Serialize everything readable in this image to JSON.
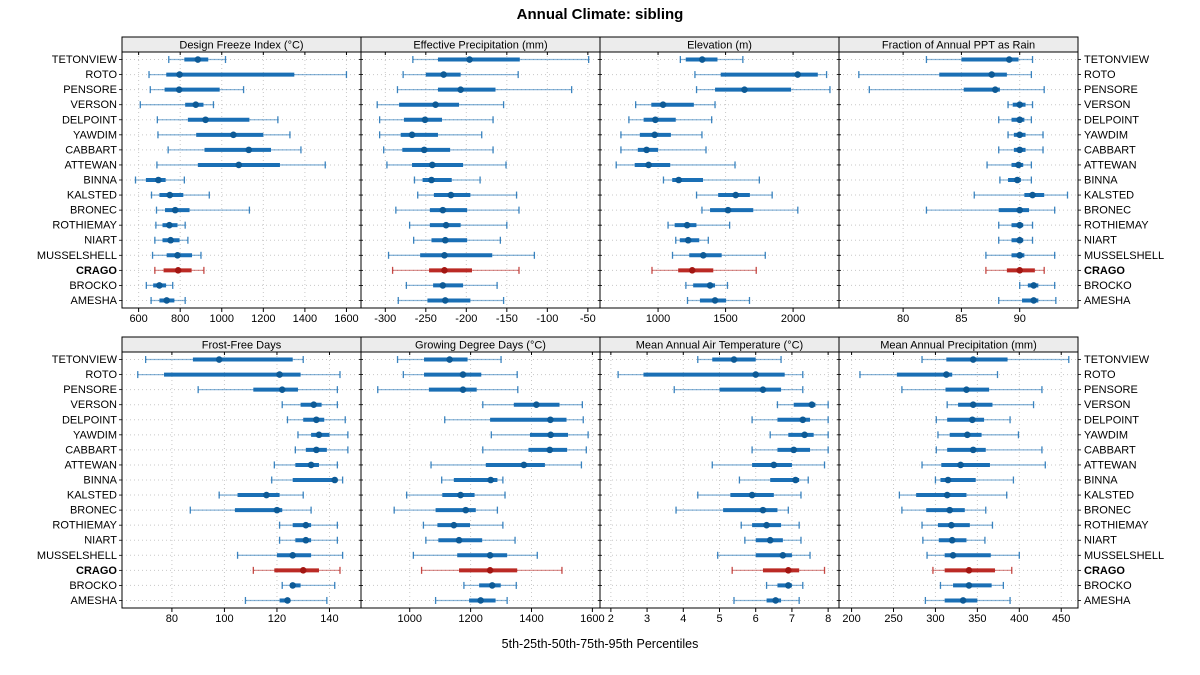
{
  "title": "Annual Climate: sibling",
  "footer": "5th-25th-50th-75th-95th Percentiles",
  "highlight_station": "CRAGO",
  "stations": [
    "TETONVIEW",
    "ROTO",
    "PENSORE",
    "VERSON",
    "DELPOINT",
    "YAWDIM",
    "CABBART",
    "ATTEWAN",
    "BINNA",
    "KALSTED",
    "BRONEC",
    "ROTHIEMAY",
    "NIART",
    "MUSSELSHELL",
    "CRAGO",
    "BROCKO",
    "AMESHA"
  ],
  "colors": {
    "series_line": "#1a6fb5",
    "series_dot": "#0d5a96",
    "highlight_line": "#bb2a25",
    "highlight_dot": "#a31612",
    "header_bg": "#ececec",
    "gridline": "#c8c8c8",
    "border": "#000000"
  },
  "chart_data": {
    "type": "dotplot-percentiles",
    "percentile_labels": [
      "5th",
      "25th",
      "50th",
      "75th",
      "95th"
    ],
    "legend_position": "none",
    "grid": "dotted",
    "panels": [
      {
        "title": "Design Freeze Index (°C)",
        "xlim": [
          520,
          1670
        ],
        "ticks": [
          600,
          800,
          1000,
          1200,
          1400,
          1600
        ],
        "values": [
          [
            745,
            820,
            885,
            935,
            1018
          ],
          [
            650,
            733,
            797,
            1349,
            1600
          ],
          [
            656,
            725,
            795,
            990,
            1105
          ],
          [
            608,
            824,
            875,
            912,
            960
          ],
          [
            690,
            837,
            922,
            1133,
            1270
          ],
          [
            693,
            877,
            1056,
            1200,
            1328
          ],
          [
            742,
            917,
            1130,
            1237,
            1381
          ],
          [
            688,
            885,
            1082,
            1280,
            1498
          ],
          [
            585,
            635,
            695,
            730,
            820
          ],
          [
            662,
            700,
            750,
            815,
            940
          ],
          [
            686,
            727,
            776,
            845,
            1133
          ],
          [
            683,
            715,
            748,
            787,
            824
          ],
          [
            678,
            715,
            754,
            797,
            837
          ],
          [
            667,
            735,
            787,
            857,
            900
          ],
          [
            678,
            720,
            790,
            855,
            914
          ],
          [
            637,
            670,
            700,
            732,
            764
          ],
          [
            660,
            700,
            735,
            772,
            824
          ]
        ]
      },
      {
        "title": "Effective Precipitation (mm)",
        "xlim": [
          -330,
          -35
        ],
        "ticks": [
          -300,
          -250,
          -200,
          -150,
          -100,
          -50
        ],
        "values": [
          [
            -266,
            -235,
            -196,
            -134,
            -49
          ],
          [
            -278,
            -250,
            -228,
            -207,
            -136
          ],
          [
            -285,
            -235,
            -207,
            -164,
            -70
          ],
          [
            -310,
            -283,
            -238,
            -209,
            -154
          ],
          [
            -307,
            -277,
            -251,
            -230,
            -167
          ],
          [
            -307,
            -281,
            -267,
            -235,
            -181
          ],
          [
            -302,
            -279,
            -252,
            -220,
            -167
          ],
          [
            -298,
            -267,
            -242,
            -204,
            -151
          ],
          [
            -264,
            -254,
            -243,
            -218,
            -183
          ],
          [
            -260,
            -240,
            -219,
            -195,
            -138
          ],
          [
            -287,
            -245,
            -229,
            -199,
            -135
          ],
          [
            -270,
            -245,
            -225,
            -207,
            -150
          ],
          [
            -265,
            -243,
            -226,
            -199,
            -158
          ],
          [
            -296,
            -257,
            -227,
            -168,
            -116
          ],
          [
            -291,
            -246,
            -227,
            -193,
            -135
          ],
          [
            -274,
            -241,
            -229,
            -204,
            -162
          ],
          [
            -284,
            -248,
            -226,
            -195,
            -154
          ]
        ]
      },
      {
        "title": "Elevation (m)",
        "xlim": [
          570,
          2340
        ],
        "ticks": [
          1000,
          1500,
          2000
        ],
        "values": [
          [
            1165,
            1205,
            1327,
            1440,
            1628
          ],
          [
            1273,
            1464,
            2034,
            2183,
            2248
          ],
          [
            1285,
            1422,
            1640,
            1985,
            2273
          ],
          [
            834,
            950,
            1037,
            1265,
            1422
          ],
          [
            784,
            893,
            980,
            1131,
            1397
          ],
          [
            725,
            865,
            975,
            1095,
            1325
          ],
          [
            725,
            850,
            915,
            1000,
            1355
          ],
          [
            690,
            827,
            930,
            1090,
            1570
          ],
          [
            1040,
            1105,
            1153,
            1333,
            1750
          ],
          [
            1285,
            1445,
            1575,
            1680,
            1845
          ],
          [
            1325,
            1385,
            1518,
            1705,
            2035
          ],
          [
            1074,
            1123,
            1215,
            1284,
            1530
          ],
          [
            1131,
            1161,
            1223,
            1305,
            1372
          ],
          [
            1107,
            1231,
            1335,
            1471,
            1794
          ],
          [
            955,
            1149,
            1253,
            1409,
            1727
          ],
          [
            1206,
            1260,
            1385,
            1422,
            1514
          ],
          [
            1218,
            1310,
            1422,
            1504,
            1677
          ]
        ]
      },
      {
        "title": "Fraction of Annual PPT as Rain",
        "xlim": [
          74.5,
          95
        ],
        "ticks": [
          80,
          85,
          90
        ],
        "values": [
          [
            82,
            85,
            89.1,
            89.9,
            91.1
          ],
          [
            76.2,
            83.1,
            87.6,
            88.9,
            91
          ],
          [
            77.1,
            85.2,
            87.9,
            88.3,
            92.1
          ],
          [
            89,
            89.4,
            90,
            90.5,
            91.1
          ],
          [
            88.2,
            89.3,
            90,
            90.4,
            91
          ],
          [
            89,
            89.5,
            90,
            90.5,
            92
          ],
          [
            88.2,
            89.5,
            90,
            90.5,
            92
          ],
          [
            87.2,
            89.3,
            89.9,
            90.3,
            91
          ],
          [
            88.3,
            89,
            89.8,
            90.1,
            91
          ],
          [
            86.1,
            90.4,
            91.1,
            92.1,
            94.1
          ],
          [
            82,
            88.2,
            90,
            90.8,
            93
          ],
          [
            88.2,
            89.3,
            90,
            90.3,
            91.1
          ],
          [
            88.2,
            89.3,
            90,
            90.3,
            91.1
          ],
          [
            87.1,
            89.3,
            90,
            90.4,
            93
          ],
          [
            87.1,
            88.9,
            90,
            91.3,
            92.1
          ],
          [
            90,
            90.7,
            91.2,
            91.6,
            93
          ],
          [
            88.2,
            90.2,
            91.2,
            91.6,
            93.1
          ]
        ]
      },
      {
        "title": "Frost-Free Days",
        "xlim": [
          61,
          152
        ],
        "ticks": [
          80,
          100,
          120,
          140
        ],
        "values": [
          [
            70,
            88,
            98,
            126,
            130
          ],
          [
            67,
            77,
            121,
            129,
            144
          ],
          [
            90,
            111,
            122,
            128,
            143
          ],
          [
            122,
            129,
            134,
            137,
            143
          ],
          [
            124,
            130,
            135,
            138,
            146
          ],
          [
            128,
            133,
            136,
            140,
            147
          ],
          [
            127,
            131,
            135,
            139,
            147
          ],
          [
            119,
            127,
            133,
            136,
            143
          ],
          [
            118,
            126,
            142,
            143,
            145
          ],
          [
            98,
            105,
            116,
            121,
            130
          ],
          [
            87,
            104,
            120,
            122,
            133
          ],
          [
            121,
            126,
            131,
            133,
            143
          ],
          [
            121,
            127,
            131,
            133,
            143
          ],
          [
            105,
            120,
            126,
            133,
            145
          ],
          [
            111,
            119,
            130,
            136,
            144
          ],
          [
            122,
            125,
            126,
            129,
            142
          ],
          [
            108,
            121,
            124,
            125,
            139
          ]
        ]
      },
      {
        "title": "Growing Degree Days (°C)",
        "xlim": [
          840,
          1625
        ],
        "ticks": [
          1000,
          1200,
          1400,
          1600
        ],
        "values": [
          [
            960,
            1047,
            1131,
            1190,
            1300
          ],
          [
            979,
            1047,
            1175,
            1235,
            1353
          ],
          [
            895,
            1063,
            1175,
            1220,
            1355
          ],
          [
            1240,
            1342,
            1416,
            1492,
            1567
          ],
          [
            1115,
            1264,
            1462,
            1515,
            1570
          ],
          [
            1268,
            1395,
            1463,
            1520,
            1586
          ],
          [
            1240,
            1390,
            1460,
            1517,
            1580
          ],
          [
            1070,
            1250,
            1375,
            1444,
            1564
          ],
          [
            1105,
            1145,
            1266,
            1288,
            1306
          ],
          [
            990,
            1107,
            1167,
            1213,
            1313
          ],
          [
            949,
            1085,
            1184,
            1217,
            1288
          ],
          [
            1045,
            1091,
            1145,
            1198,
            1306
          ],
          [
            1053,
            1094,
            1162,
            1238,
            1346
          ],
          [
            1012,
            1156,
            1264,
            1320,
            1419
          ],
          [
            1039,
            1162,
            1264,
            1353,
            1500
          ],
          [
            1178,
            1228,
            1271,
            1299,
            1350
          ],
          [
            1085,
            1195,
            1233,
            1282,
            1320
          ]
        ]
      },
      {
        "title": "Mean Annual Air Temperature (°C)",
        "xlim": [
          1.7,
          8.3
        ],
        "ticks": [
          2,
          3,
          4,
          5,
          6,
          7,
          8
        ],
        "values": [
          [
            4.4,
            4.8,
            5.4,
            6.0,
            6.7
          ],
          [
            2.2,
            2.9,
            6.0,
            6.8,
            7.3
          ],
          [
            3.75,
            5.0,
            6.2,
            6.7,
            7.3
          ],
          [
            6.6,
            7.05,
            7.55,
            7.65,
            8.0
          ],
          [
            5.9,
            6.6,
            7.3,
            7.5,
            8.0
          ],
          [
            6.4,
            6.9,
            7.35,
            7.6,
            8.0
          ],
          [
            5.9,
            6.6,
            7.05,
            7.5,
            8.0
          ],
          [
            4.8,
            5.9,
            6.5,
            7.0,
            7.9
          ],
          [
            5.55,
            6.4,
            7.1,
            7.2,
            7.45
          ],
          [
            4.4,
            5.3,
            5.9,
            6.5,
            7.25
          ],
          [
            3.8,
            5.1,
            6.2,
            6.6,
            6.9
          ],
          [
            5.6,
            5.9,
            6.3,
            6.7,
            7.2
          ],
          [
            5.7,
            6.0,
            6.4,
            6.75,
            7.25
          ],
          [
            4.95,
            6.0,
            6.75,
            7.0,
            7.5
          ],
          [
            5.35,
            6.2,
            6.9,
            7.2,
            7.9
          ],
          [
            6.3,
            6.6,
            6.9,
            7.0,
            7.3
          ],
          [
            5.4,
            6.3,
            6.55,
            6.7,
            7.2
          ]
        ]
      },
      {
        "title": "Mean Annual Precipitation (mm)",
        "xlim": [
          185,
          470
        ],
        "ticks": [
          200,
          250,
          300,
          350,
          400,
          450
        ],
        "values": [
          [
            284,
            313,
            345,
            386,
            459
          ],
          [
            210,
            254,
            313,
            320,
            374
          ],
          [
            260,
            312,
            337,
            364,
            427
          ],
          [
            314,
            327,
            345,
            368,
            417
          ],
          [
            301,
            314,
            344,
            358,
            389
          ],
          [
            303,
            317,
            338,
            355,
            399
          ],
          [
            301,
            314,
            345,
            360,
            427
          ],
          [
            284,
            307,
            330,
            365,
            431
          ],
          [
            300,
            306,
            315,
            348,
            393
          ],
          [
            257,
            277,
            314,
            337,
            385
          ],
          [
            260,
            289,
            317,
            335,
            360
          ],
          [
            284,
            303,
            319,
            341,
            368
          ],
          [
            285,
            304,
            320,
            337,
            359
          ],
          [
            290,
            311,
            321,
            366,
            400
          ],
          [
            297,
            311,
            340,
            371,
            391
          ],
          [
            306,
            321,
            340,
            367,
            381
          ],
          [
            288,
            311,
            333,
            350,
            389
          ]
        ]
      }
    ]
  }
}
